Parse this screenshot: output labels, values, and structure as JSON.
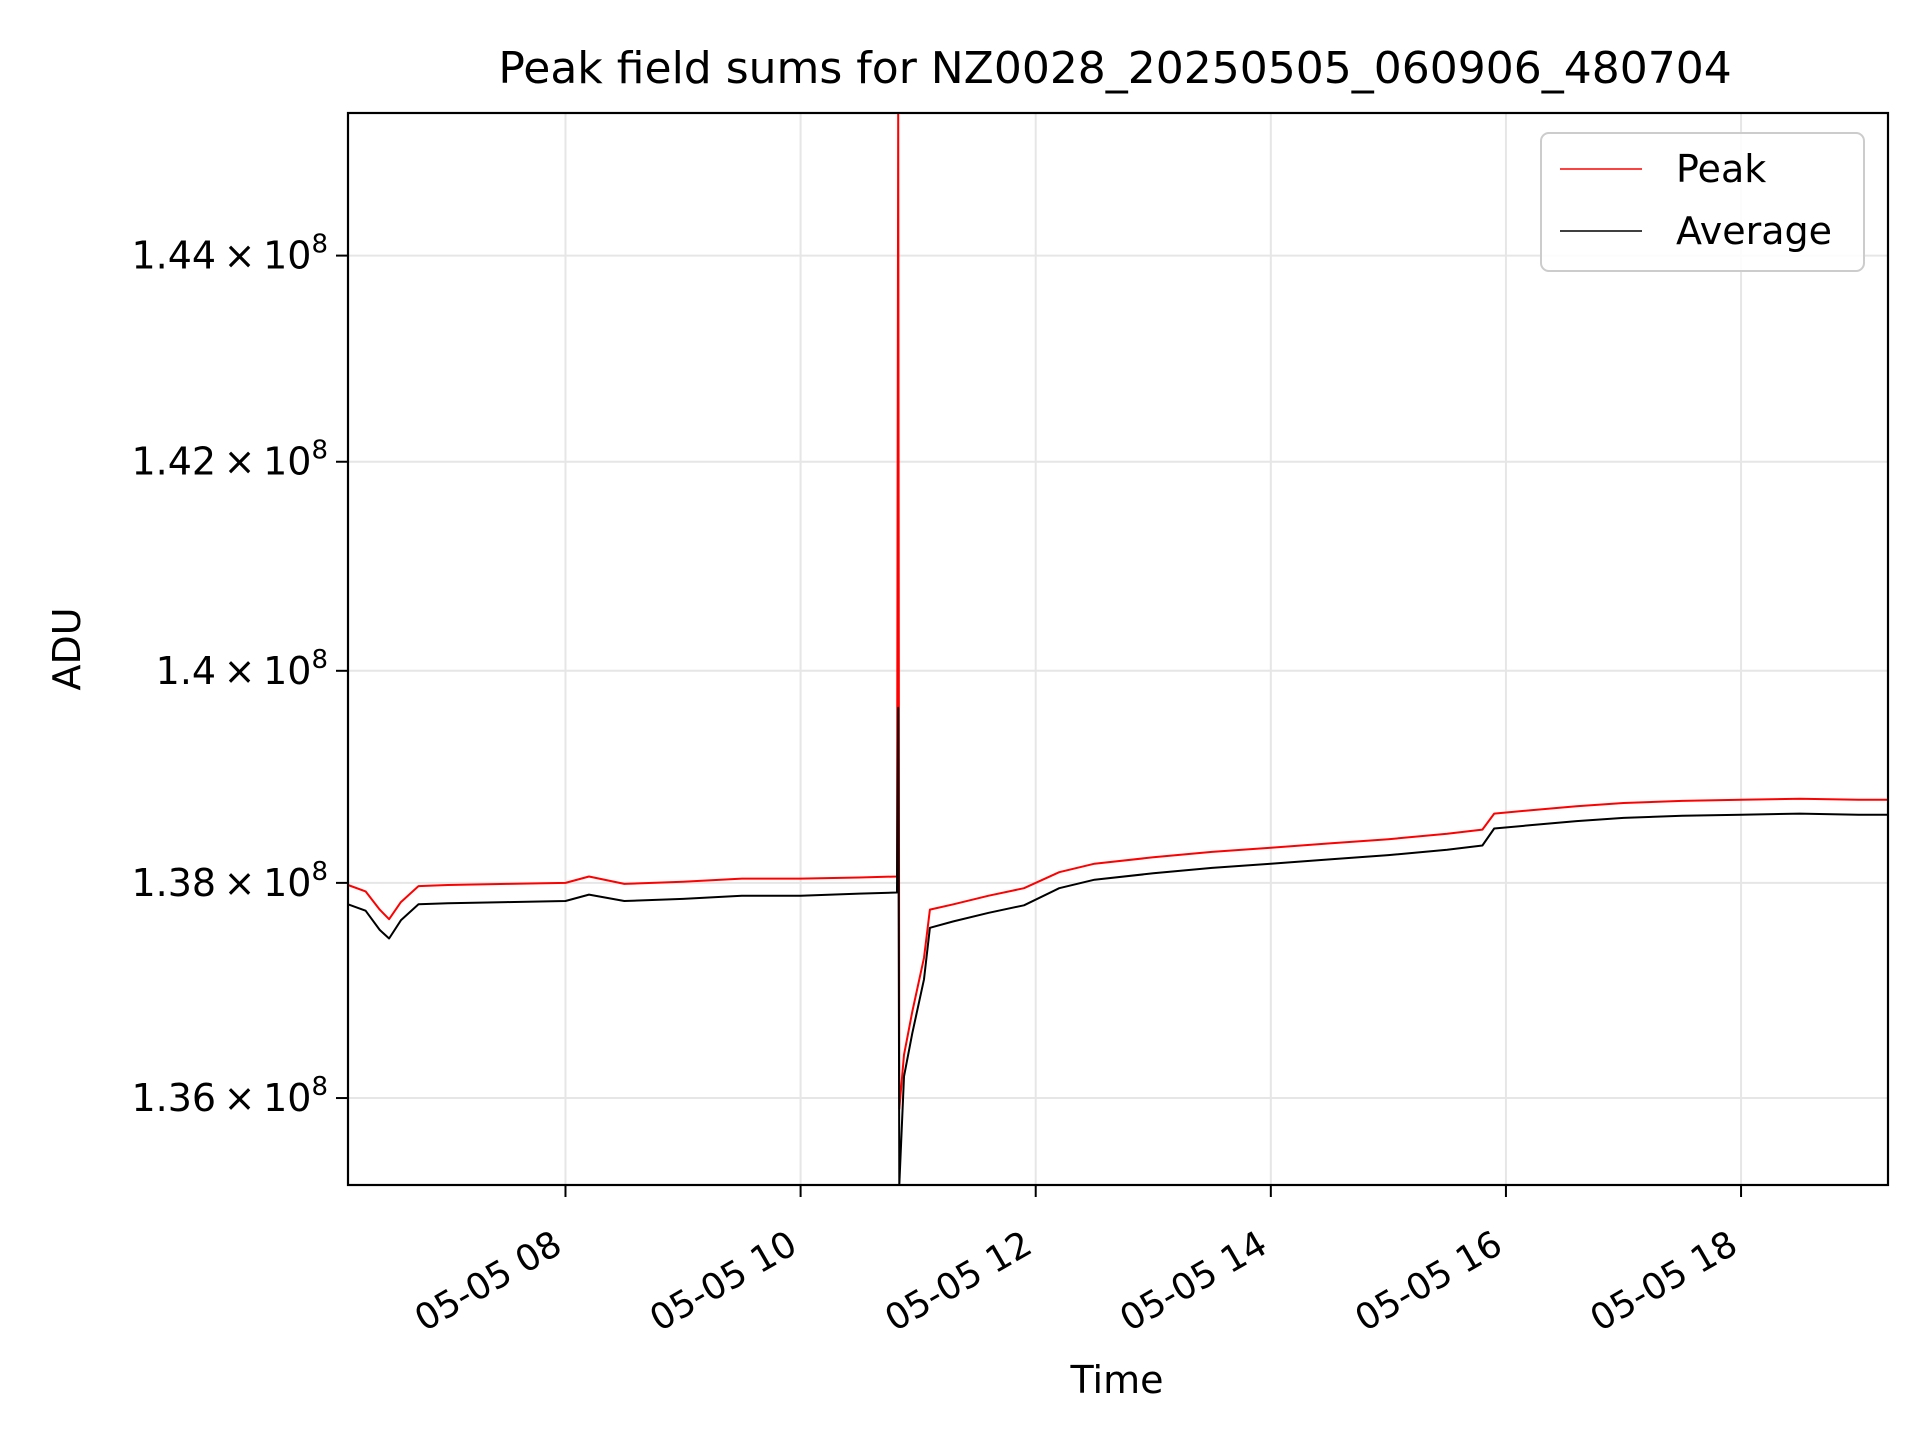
{
  "chart_data": {
    "type": "line",
    "title": "Peak field sums for NZ0028_20250505_060906_480704",
    "xlabel": "Time",
    "ylabel": "ADU",
    "x_tick_labels": [
      "05-05 08",
      "05-05 10",
      "05-05 12",
      "05-05 14",
      "05-05 16",
      "05-05 18"
    ],
    "x_tick_hours": [
      8,
      10,
      12,
      14,
      16,
      18
    ],
    "xlim_hours": [
      6.15,
      19.25
    ],
    "y_tick_values": [
      136000000,
      138000000,
      140000000,
      142000000,
      144000000
    ],
    "y_tick_labels": [
      {
        "mantissa": "1.36",
        "exponent": "8"
      },
      {
        "mantissa": "1.38",
        "exponent": "8"
      },
      {
        "mantissa": "1.4",
        "exponent": "8"
      },
      {
        "mantissa": "1.42",
        "exponent": "8"
      },
      {
        "mantissa": "1.44",
        "exponent": "8"
      }
    ],
    "ylim": [
      135200000,
      145400000
    ],
    "y_scale": "log",
    "grid": true,
    "legend_position": "top-right",
    "series": [
      {
        "name": "Peak",
        "color": "#ff0000",
        "points": [
          [
            6.15,
            137980000
          ],
          [
            6.3,
            137920000
          ],
          [
            6.42,
            137750000
          ],
          [
            6.5,
            137660000
          ],
          [
            6.6,
            137820000
          ],
          [
            6.75,
            137970000
          ],
          [
            7.0,
            137980000
          ],
          [
            7.5,
            137990000
          ],
          [
            8.0,
            138000000
          ],
          [
            8.2,
            138060000
          ],
          [
            8.5,
            137990000
          ],
          [
            9.0,
            138010000
          ],
          [
            9.5,
            138040000
          ],
          [
            10.0,
            138040000
          ],
          [
            10.5,
            138050000
          ],
          [
            10.82,
            138060000
          ],
          [
            10.83,
            145400000
          ],
          [
            10.84,
            135900000
          ],
          [
            10.88,
            136400000
          ],
          [
            10.95,
            136800000
          ],
          [
            11.05,
            137300000
          ],
          [
            11.1,
            137750000
          ],
          [
            11.3,
            137800000
          ],
          [
            11.6,
            137880000
          ],
          [
            11.9,
            137950000
          ],
          [
            12.2,
            138100000
          ],
          [
            12.5,
            138180000
          ],
          [
            13.0,
            138240000
          ],
          [
            13.5,
            138290000
          ],
          [
            14.0,
            138330000
          ],
          [
            14.5,
            138370000
          ],
          [
            15.0,
            138410000
          ],
          [
            15.5,
            138460000
          ],
          [
            15.8,
            138500000
          ],
          [
            15.9,
            138650000
          ],
          [
            16.2,
            138680000
          ],
          [
            16.6,
            138720000
          ],
          [
            17.0,
            138750000
          ],
          [
            17.5,
            138770000
          ],
          [
            18.0,
            138780000
          ],
          [
            18.5,
            138790000
          ],
          [
            19.0,
            138780000
          ],
          [
            19.25,
            138780000
          ]
        ]
      },
      {
        "name": "Average",
        "color": "#000000",
        "points": [
          [
            6.15,
            137800000
          ],
          [
            6.3,
            137740000
          ],
          [
            6.42,
            137560000
          ],
          [
            6.5,
            137480000
          ],
          [
            6.6,
            137650000
          ],
          [
            6.75,
            137800000
          ],
          [
            7.0,
            137810000
          ],
          [
            7.5,
            137820000
          ],
          [
            8.0,
            137830000
          ],
          [
            8.2,
            137890000
          ],
          [
            8.5,
            137830000
          ],
          [
            9.0,
            137850000
          ],
          [
            9.5,
            137880000
          ],
          [
            10.0,
            137880000
          ],
          [
            10.5,
            137900000
          ],
          [
            10.82,
            137910000
          ],
          [
            10.83,
            139650000
          ],
          [
            10.84,
            135200000
          ],
          [
            10.88,
            136200000
          ],
          [
            10.95,
            136600000
          ],
          [
            11.05,
            137100000
          ],
          [
            11.1,
            137580000
          ],
          [
            11.3,
            137640000
          ],
          [
            11.6,
            137720000
          ],
          [
            11.9,
            137790000
          ],
          [
            12.2,
            137950000
          ],
          [
            12.5,
            138030000
          ],
          [
            13.0,
            138090000
          ],
          [
            13.5,
            138140000
          ],
          [
            14.0,
            138180000
          ],
          [
            14.5,
            138220000
          ],
          [
            15.0,
            138260000
          ],
          [
            15.5,
            138310000
          ],
          [
            15.8,
            138350000
          ],
          [
            15.9,
            138510000
          ],
          [
            16.2,
            138540000
          ],
          [
            16.6,
            138580000
          ],
          [
            17.0,
            138610000
          ],
          [
            17.5,
            138630000
          ],
          [
            18.0,
            138640000
          ],
          [
            18.5,
            138650000
          ],
          [
            19.0,
            138640000
          ],
          [
            19.25,
            138640000
          ]
        ]
      }
    ]
  }
}
